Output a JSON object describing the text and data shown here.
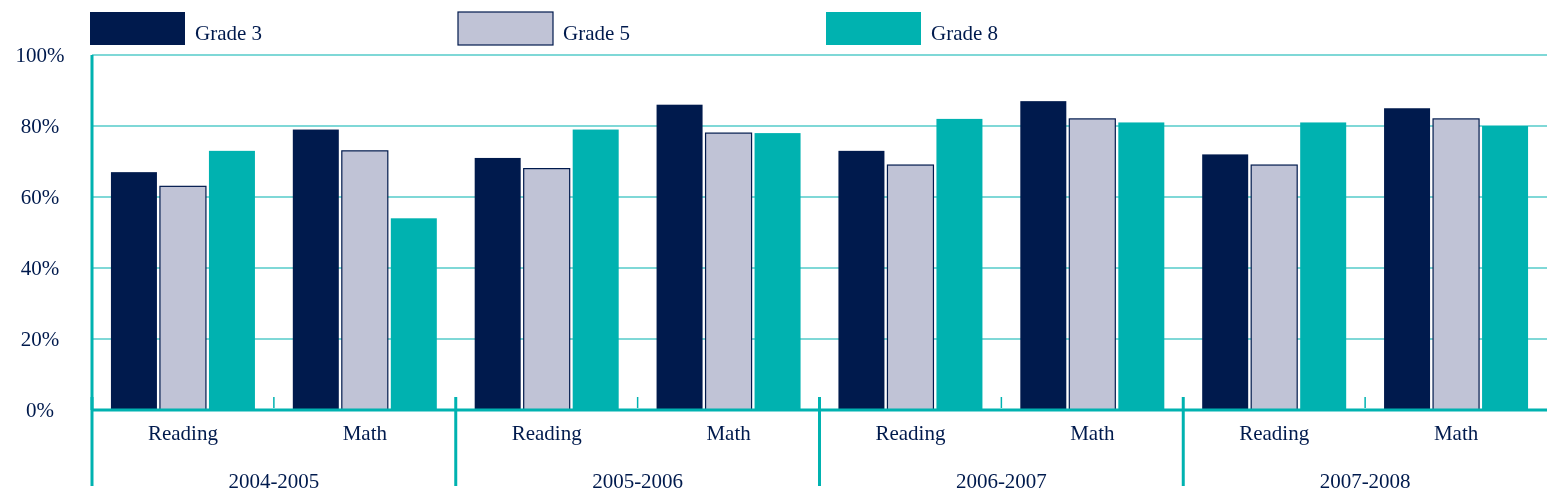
{
  "chart_data": {
    "type": "bar",
    "categories": [
      "Reading",
      "Math",
      "Reading",
      "Math",
      "Reading",
      "Math",
      "Reading",
      "Math"
    ],
    "series": [
      {
        "name": "Grade 3",
        "color": "#001a4d",
        "values": [
          67,
          79,
          71,
          86,
          73,
          87,
          72,
          85
        ]
      },
      {
        "name": "Grade 5",
        "color": "#c0c3d6",
        "values": [
          63,
          73,
          68,
          78,
          69,
          82,
          69,
          82
        ]
      },
      {
        "name": "Grade 8",
        "color": "#00b2b0",
        "values": [
          73,
          54,
          79,
          78,
          82,
          81,
          81,
          80
        ]
      }
    ],
    "annotations": [
      "2004-2005",
      "2005-2006",
      "2006-2007",
      "2007-2008"
    ],
    "ylim": [
      0,
      100
    ],
    "yticks": [
      {
        "value": 0,
        "label": "0%"
      },
      {
        "value": 20,
        "label": "20%"
      },
      {
        "value": 40,
        "label": "40%"
      },
      {
        "value": 60,
        "label": "60%"
      },
      {
        "value": 80,
        "label": "80%"
      },
      {
        "value": 100,
        "label": "100%"
      }
    ],
    "grid": "y",
    "legend": "top"
  }
}
